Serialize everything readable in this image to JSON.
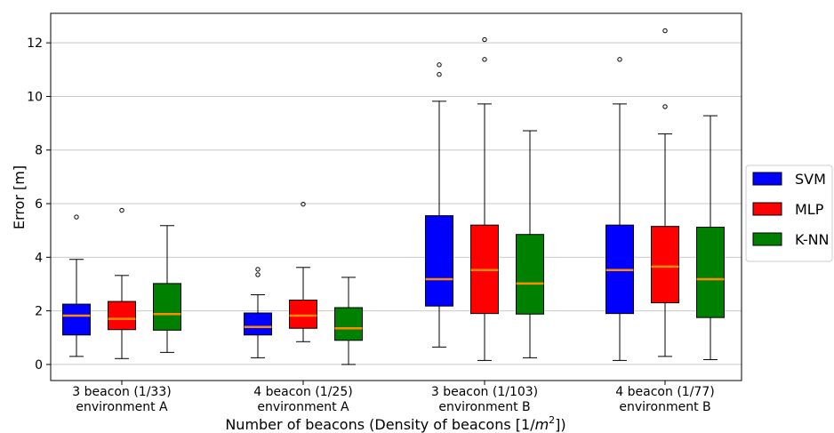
{
  "chart_data": {
    "type": "box",
    "xlabel": "Number of beacons (Density of beacons [1/m²])",
    "xlabel_parts": {
      "prefix": "Number of beacons (Density of beacons [1/",
      "var": "m",
      "sup": "2",
      "suffix": "])"
    },
    "ylabel": "Error [m]",
    "ylim": [
      -0.6,
      13.1
    ],
    "yticks": [
      0,
      2,
      4,
      6,
      8,
      10,
      12
    ],
    "grid": "y",
    "legend_position": "right",
    "categories": [
      {
        "line1": "3 beacon (1/33)",
        "line2": "environment A"
      },
      {
        "line1": "4 beacon (1/25)",
        "line2": "environment A"
      },
      {
        "line1": "3 beacon (1/103)",
        "line2": "environment B"
      },
      {
        "line1": "4 beacon (1/77)",
        "line2": "environment B"
      }
    ],
    "series": [
      {
        "name": "SVM",
        "color": "#0000ff",
        "boxes": [
          {
            "whisker_low": 0.3,
            "q1": 1.1,
            "median": 1.82,
            "q3": 2.25,
            "whisker_high": 3.92,
            "outliers": [
              5.5
            ]
          },
          {
            "whisker_low": 0.25,
            "q1": 1.1,
            "median": 1.4,
            "q3": 1.92,
            "whisker_high": 2.6,
            "outliers": [
              3.35,
              3.55
            ]
          },
          {
            "whisker_low": 0.65,
            "q1": 2.18,
            "median": 3.18,
            "q3": 5.55,
            "whisker_high": 9.82,
            "outliers": [
              10.82,
              11.18
            ]
          },
          {
            "whisker_low": 0.15,
            "q1": 1.9,
            "median": 3.52,
            "q3": 5.2,
            "whisker_high": 9.72,
            "outliers": [
              11.38
            ]
          }
        ]
      },
      {
        "name": "MLP",
        "color": "#ff0000",
        "boxes": [
          {
            "whisker_low": 0.22,
            "q1": 1.3,
            "median": 1.7,
            "q3": 2.35,
            "whisker_high": 3.32,
            "outliers": [
              5.75
            ]
          },
          {
            "whisker_low": 0.85,
            "q1": 1.35,
            "median": 1.82,
            "q3": 2.4,
            "whisker_high": 3.62,
            "outliers": [
              5.98
            ]
          },
          {
            "whisker_low": 0.15,
            "q1": 1.9,
            "median": 3.52,
            "q3": 5.2,
            "whisker_high": 9.72,
            "outliers": [
              11.38,
              12.12
            ]
          },
          {
            "whisker_low": 0.3,
            "q1": 2.3,
            "median": 3.65,
            "q3": 5.15,
            "whisker_high": 8.6,
            "outliers": [
              9.62,
              12.45
            ]
          }
        ]
      },
      {
        "name": "K-NN",
        "color": "#008000",
        "boxes": [
          {
            "whisker_low": 0.45,
            "q1": 1.28,
            "median": 1.88,
            "q3": 3.02,
            "whisker_high": 5.18,
            "outliers": []
          },
          {
            "whisker_low": 0.0,
            "q1": 0.9,
            "median": 1.35,
            "q3": 2.12,
            "whisker_high": 3.25,
            "outliers": []
          },
          {
            "whisker_low": 0.25,
            "q1": 1.88,
            "median": 3.02,
            "q3": 4.85,
            "whisker_high": 8.72,
            "outliers": []
          },
          {
            "whisker_low": 0.18,
            "q1": 1.75,
            "median": 3.18,
            "q3": 5.12,
            "whisker_high": 9.28,
            "outliers": []
          }
        ]
      }
    ],
    "median_color": "#ff8c00"
  }
}
